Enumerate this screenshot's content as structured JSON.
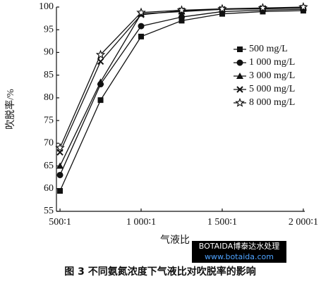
{
  "chart_data": {
    "type": "line",
    "x_label": "气液比",
    "y_label": "吹脱率/%",
    "caption": "图 3   不同氨氮浓度下气液比对吹脱率的影响",
    "watermark": [
      "BOTAIDA博泰达水处理",
      "www.botaida.com"
    ],
    "x": [
      500,
      750,
      1000,
      1250,
      1500,
      1750,
      2000
    ],
    "xlim": [
      478,
      2009
    ],
    "xticks": [
      {
        "value": 500,
        "label": "500∶1"
      },
      {
        "value": 1000,
        "label": "1 000∶1"
      },
      {
        "value": 1500,
        "label": "1 500∶1"
      },
      {
        "value": 2000,
        "label": "2 000∶1"
      }
    ],
    "ylim": [
      55,
      100
    ],
    "yticks": [
      55,
      60,
      65,
      70,
      75,
      80,
      85,
      90,
      95,
      100
    ],
    "grid": false,
    "legend_position": "right",
    "series": [
      {
        "name": "500 mg/L",
        "color": "#111111",
        "marker": "square",
        "values": [
          59.5,
          79.5,
          93.5,
          97,
          98.5,
          99,
          99.2
        ]
      },
      {
        "name": "1 000 mg/L",
        "color": "#111111",
        "marker": "circle",
        "values": [
          63,
          83,
          95.8,
          97.8,
          99,
          99.3,
          99.5
        ]
      },
      {
        "name": "3 000 mg/L",
        "color": "#111111",
        "marker": "triangle",
        "values": [
          65,
          83.5,
          98.5,
          99,
          99.5,
          99.6,
          99.8
        ]
      },
      {
        "name": "5 000 mg/L",
        "color": "#111111",
        "marker": "x",
        "values": [
          68,
          88,
          98.3,
          99.2,
          99.5,
          99.7,
          99.8
        ]
      },
      {
        "name": "8 000 mg/L",
        "color": "#111111",
        "marker": "star",
        "values": [
          69,
          89.5,
          98.8,
          99.3,
          99.6,
          99.8,
          100
        ]
      }
    ]
  }
}
